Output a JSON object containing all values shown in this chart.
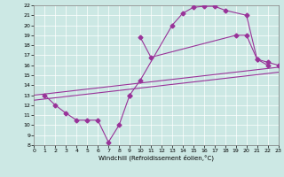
{
  "xlabel": "Windchill (Refroidissement éolien,°C)",
  "bg_color": "#cce8e4",
  "grid_color": "#ffffff",
  "line_color": "#993399",
  "xmin": 0,
  "xmax": 23,
  "ymin": 8,
  "ymax": 22,
  "yticks": [
    8,
    9,
    10,
    11,
    12,
    13,
    14,
    15,
    16,
    17,
    18,
    19,
    20,
    21,
    22
  ],
  "xticks": [
    0,
    1,
    2,
    3,
    4,
    5,
    6,
    7,
    8,
    9,
    10,
    11,
    12,
    13,
    14,
    15,
    16,
    17,
    18,
    19,
    20,
    21,
    22,
    23
  ],
  "line1_x": [
    1,
    2,
    3,
    4,
    5,
    6,
    7,
    8,
    9
  ],
  "line1_y": [
    13.0,
    12.0,
    11.2,
    10.5,
    10.5,
    10.5,
    8.3,
    10.0,
    13.0
  ],
  "line2_x": [
    9,
    10,
    13,
    14,
    15,
    16,
    17,
    18,
    20,
    21,
    22
  ],
  "line2_y": [
    13.0,
    14.5,
    20.0,
    21.2,
    21.8,
    21.9,
    21.9,
    21.5,
    21.0,
    16.6,
    16.0
  ],
  "line3_x": [
    10,
    11,
    19,
    20,
    21,
    22,
    23
  ],
  "line3_y": [
    18.8,
    16.8,
    19.0,
    19.0,
    16.6,
    16.3,
    16.0
  ],
  "line4_x": [
    0,
    23
  ],
  "line4_y": [
    12.5,
    15.3
  ],
  "line5_x": [
    0,
    23
  ],
  "line5_y": [
    13.0,
    15.8
  ]
}
